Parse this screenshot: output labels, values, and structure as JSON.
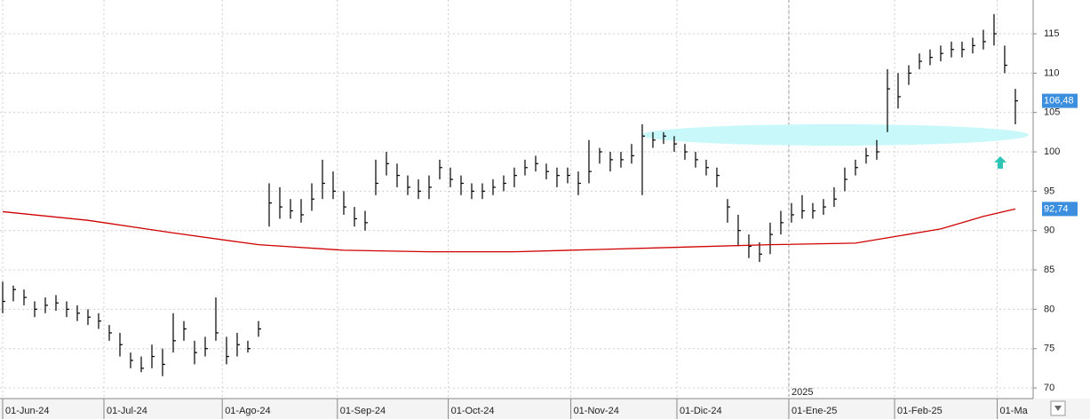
{
  "chart_data": {
    "type": "ohlc",
    "xlim": [
      -0.25,
      96.67
    ],
    "ylim": [
      68.65,
      119.29
    ],
    "yticks": [
      70,
      75,
      80,
      85,
      90,
      95,
      100,
      105,
      110,
      115
    ],
    "xticks": [
      {
        "value": 0,
        "label": "01-Jun-24"
      },
      {
        "value": 9.5,
        "label": "01-Jul-24"
      },
      {
        "value": 20.6,
        "label": "01-Ago-24"
      },
      {
        "value": 31.4,
        "label": "01-Sep-24"
      },
      {
        "value": 41.8,
        "label": "01-Oct-24"
      },
      {
        "value": 53.3,
        "label": "01-Nov-24"
      },
      {
        "value": 63.25,
        "label": "01-Dic-24"
      },
      {
        "value": 73.75,
        "label": "01-Ene-25"
      },
      {
        "value": 83.67,
        "label": "01-Feb-25"
      },
      {
        "value": 93.3,
        "label": "01-Ma"
      }
    ],
    "grid": true,
    "year_label": "2025",
    "label_color": "#3c8fde",
    "series": [
      {
        "color": "#000000",
        "high": [
          83.5,
          83,
          82.5,
          81,
          81.5,
          81.8,
          81,
          80.5,
          80,
          79.5,
          78,
          77,
          74.5,
          74,
          75.5,
          75,
          79.5,
          78.5,
          76,
          76.5,
          81.5,
          76.5,
          77,
          76,
          78.5,
          96,
          95.5,
          94,
          94,
          96,
          99,
          97.5,
          95,
          93,
          92.5,
          99,
          100,
          98.5,
          97,
          96.5,
          97,
          99,
          98,
          97,
          96,
          96,
          96.5,
          97,
          98,
          99,
          99.5,
          98.5,
          98,
          98,
          97.5,
          101.5,
          100.5,
          100,
          100,
          101,
          103.5,
          102.5,
          102.5,
          102,
          101,
          100,
          99,
          98,
          94,
          92,
          89.5,
          88.5,
          91,
          92.5,
          93.5,
          94.5,
          93.5,
          94,
          95.5,
          98,
          99,
          100.5,
          101.5,
          110.5,
          110,
          111,
          112.5,
          113,
          113.5,
          114,
          114,
          114.5,
          115.5,
          117.5,
          113.5,
          108
        ],
        "low": [
          79.5,
          81,
          80.5,
          79,
          79.5,
          79.8,
          79,
          78.5,
          78,
          77.5,
          76,
          74,
          72.5,
          72,
          72.5,
          71.5,
          74.5,
          76,
          73,
          74,
          76,
          73,
          74,
          74.5,
          76.5,
          90.5,
          91.5,
          91.5,
          91,
          92.5,
          94,
          94,
          92,
          90.5,
          90,
          94.5,
          97,
          95.5,
          94.5,
          94,
          94,
          96.5,
          95.5,
          94.5,
          94,
          94,
          94.5,
          95,
          95.5,
          97,
          97.5,
          96.5,
          95.5,
          96,
          94.5,
          96,
          98.5,
          97.5,
          98,
          98.5,
          94.5,
          100.5,
          101,
          100,
          99,
          98,
          97,
          95.5,
          91,
          88,
          86.5,
          86,
          87,
          89.5,
          91,
          91.5,
          91.5,
          92,
          93,
          95,
          97,
          98.5,
          99,
          102.5,
          105.5,
          108.5,
          110.5,
          111,
          111.5,
          112,
          112,
          112.5,
          113,
          113.5,
          110,
          103.5
        ],
        "close": [
          81,
          82.5,
          81.5,
          80,
          80.5,
          80.8,
          80,
          79.5,
          79,
          78.5,
          77,
          75.5,
          73.5,
          72.5,
          74,
          73,
          76,
          77.5,
          74.5,
          75,
          77,
          74,
          75.5,
          75,
          77.5,
          93.5,
          93,
          92.5,
          92,
          94,
          96,
          95,
          93,
          91.5,
          91,
          96,
          98.5,
          97,
          95.5,
          95,
          95.5,
          98,
          96.5,
          96,
          95,
          95,
          95.5,
          96,
          97,
          98,
          98.5,
          97.5,
          97,
          97,
          96,
          97.5,
          100,
          99,
          99,
          99.5,
          102,
          101.5,
          102,
          101,
          100,
          99,
          98,
          97,
          93,
          90,
          88,
          87,
          89.5,
          91,
          92,
          92.5,
          92.5,
          93,
          94,
          96.5,
          98,
          99.5,
          100,
          108,
          107,
          110,
          111.5,
          112,
          112.5,
          113,
          113,
          113.5,
          114,
          115,
          111,
          106.48
        ],
        "last_label": {
          "value": 106.48,
          "label": "106,48"
        }
      }
    ],
    "moving_average": {
      "color": "#d00000",
      "x": [
        0,
        8,
        16,
        24,
        32,
        40,
        48,
        56,
        64,
        72,
        80,
        84,
        88,
        92,
        95
      ],
      "values": [
        92.4,
        91.3,
        89.7,
        88.2,
        87.5,
        87.3,
        87.3,
        87.6,
        87.9,
        88.2,
        88.4,
        89.3,
        90.2,
        91.8,
        92.74
      ],
      "last_label": {
        "value": 92.74,
        "label": "92,74"
      }
    }
  }
}
